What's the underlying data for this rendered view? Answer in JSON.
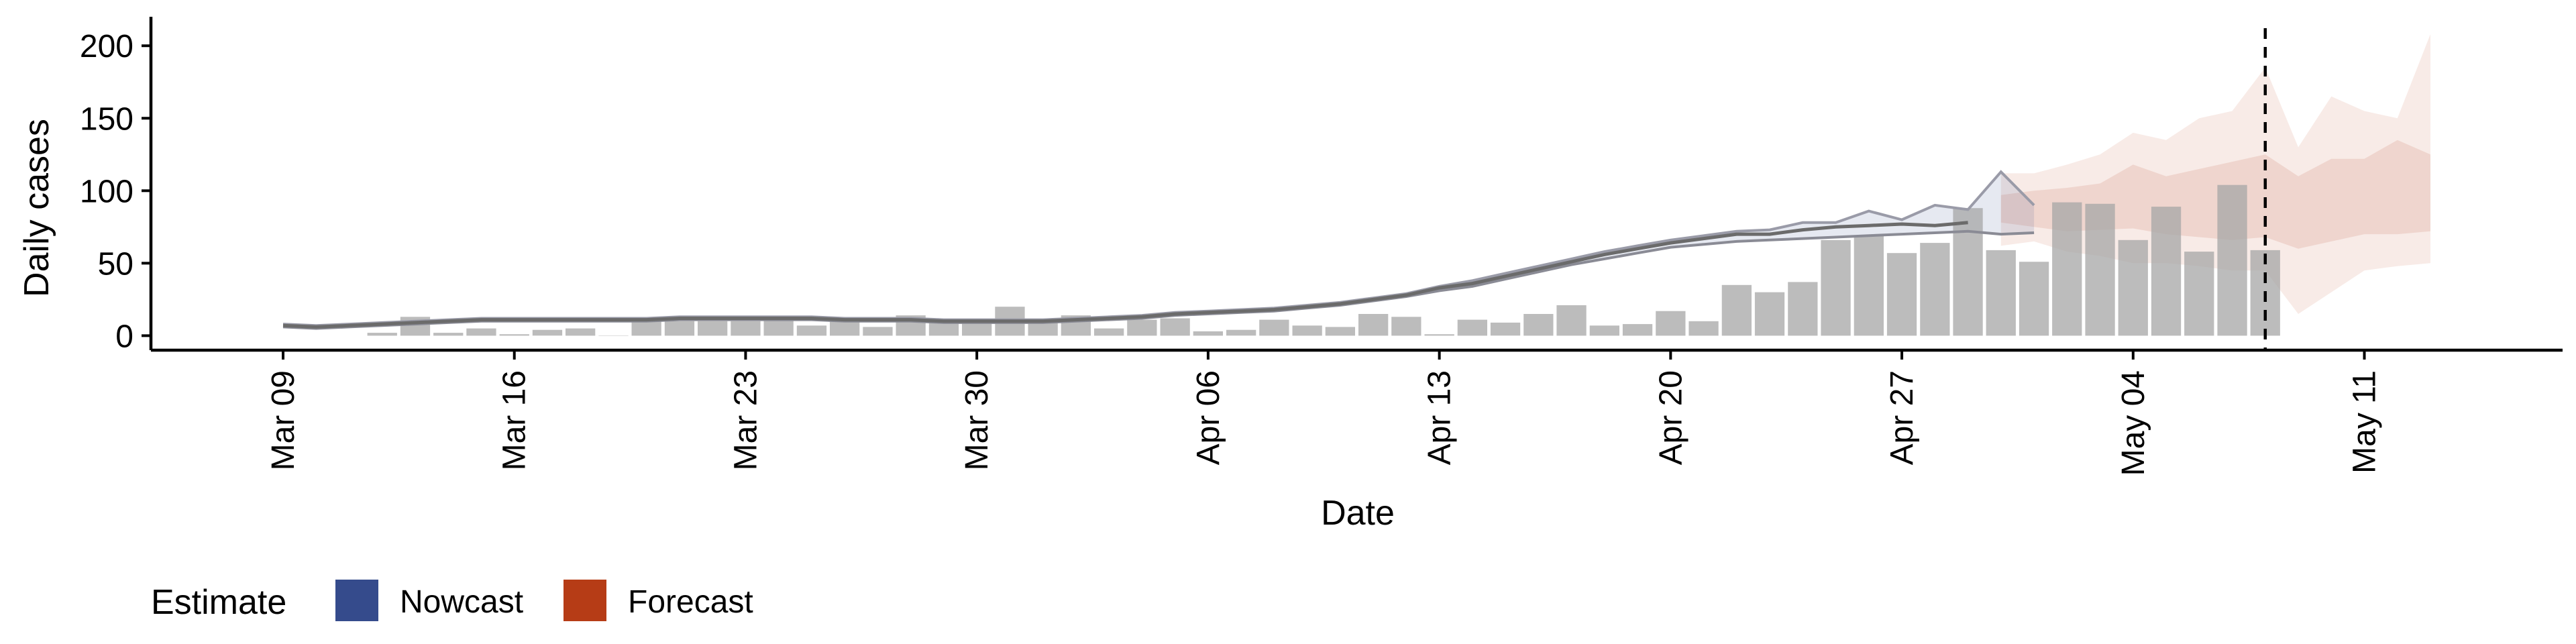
{
  "chart_data": {
    "type": "bar",
    "xlabel": "Date",
    "ylabel": "Daily cases",
    "ylim": [
      -10,
      220
    ],
    "yticks": [
      0,
      50,
      100,
      150,
      200
    ],
    "x_range": [
      "2020-03-05",
      "2020-05-17"
    ],
    "x_ticks": [
      {
        "date": "2020-03-09",
        "label": "Mar 09"
      },
      {
        "date": "2020-03-16",
        "label": "Mar 16"
      },
      {
        "date": "2020-03-23",
        "label": "Mar 23"
      },
      {
        "date": "2020-03-30",
        "label": "Mar 30"
      },
      {
        "date": "2020-04-06",
        "label": "Apr 06"
      },
      {
        "date": "2020-04-13",
        "label": "Apr 13"
      },
      {
        "date": "2020-04-20",
        "label": "Apr 20"
      },
      {
        "date": "2020-04-27",
        "label": "Apr 27"
      },
      {
        "date": "2020-05-04",
        "label": "May 04"
      },
      {
        "date": "2020-05-11",
        "label": "May 11"
      }
    ],
    "bars": {
      "start_date": "2020-03-12",
      "values": [
        2,
        13,
        2,
        5,
        1,
        4,
        5,
        0,
        11,
        10,
        10,
        10,
        11,
        7,
        10,
        6,
        14,
        10,
        11,
        20,
        10,
        14,
        5,
        11,
        12,
        3,
        4,
        11,
        7,
        6,
        15,
        13,
        1,
        11,
        9,
        15,
        21,
        7,
        8,
        17,
        10,
        35,
        30,
        37,
        66,
        69,
        57,
        64,
        88,
        59,
        51,
        92,
        91,
        66,
        89,
        58,
        104,
        59
      ]
    },
    "observed_line": {
      "start_date": "2020-03-09",
      "values": [
        7,
        6,
        7,
        8,
        9,
        10,
        11,
        11,
        11,
        11,
        11,
        11,
        12,
        12,
        12,
        12,
        12,
        11,
        11,
        11,
        10,
        10,
        10,
        10,
        11,
        12,
        13,
        15,
        16,
        17,
        18,
        20,
        22,
        25,
        28,
        33,
        36,
        41,
        46,
        51,
        56,
        60,
        64,
        67,
        70,
        70,
        73,
        75,
        76,
        77,
        76,
        78
      ]
    },
    "series": [
      {
        "name": "Nowcast",
        "color": "#354B8C",
        "start_date": "2020-03-09",
        "upper": [
          8,
          7,
          8,
          9,
          10,
          11,
          12,
          12,
          12,
          12,
          12,
          12,
          13,
          13,
          13,
          13,
          13,
          12,
          12,
          12,
          11,
          11,
          11,
          11,
          12,
          13,
          14,
          16,
          17,
          18,
          19,
          21,
          23,
          26,
          29,
          34,
          38,
          43,
          48,
          53,
          58,
          62,
          66,
          69,
          72,
          73,
          78,
          78,
          86,
          80,
          90,
          87,
          113,
          90
        ],
        "lower": [
          6,
          5,
          6,
          7,
          8,
          9,
          10,
          10,
          10,
          10,
          10,
          10,
          11,
          11,
          11,
          11,
          11,
          10,
          10,
          10,
          9,
          9,
          9,
          9,
          10,
          11,
          12,
          14,
          15,
          16,
          17,
          19,
          21,
          24,
          27,
          31,
          34,
          39,
          44,
          49,
          53,
          57,
          61,
          63,
          65,
          66,
          67,
          68,
          69,
          70,
          71,
          72,
          70,
          71
        ]
      },
      {
        "name": "Forecast",
        "color": "#B63C16",
        "start_date": "2020-04-30",
        "upper90": [
          112,
          112,
          118,
          125,
          140,
          135,
          150,
          155,
          185,
          130,
          165,
          155,
          150,
          208
        ],
        "lower90": [
          62,
          65,
          58,
          55,
          50,
          50,
          48,
          45,
          45,
          15,
          30,
          45,
          48,
          50
        ],
        "upper50": [
          97,
          100,
          102,
          105,
          118,
          110,
          115,
          120,
          125,
          110,
          122,
          122,
          135,
          125
        ],
        "lower50": [
          78,
          75,
          72,
          73,
          74,
          70,
          68,
          66,
          68,
          60,
          65,
          70,
          70,
          72
        ]
      }
    ],
    "vline_date": "2020-05-08",
    "legend": {
      "title": "Estimate",
      "position": "bottom-left",
      "items": [
        {
          "label": "Nowcast",
          "color": "#354B8C"
        },
        {
          "label": "Forecast",
          "color": "#B63C16"
        }
      ]
    }
  }
}
